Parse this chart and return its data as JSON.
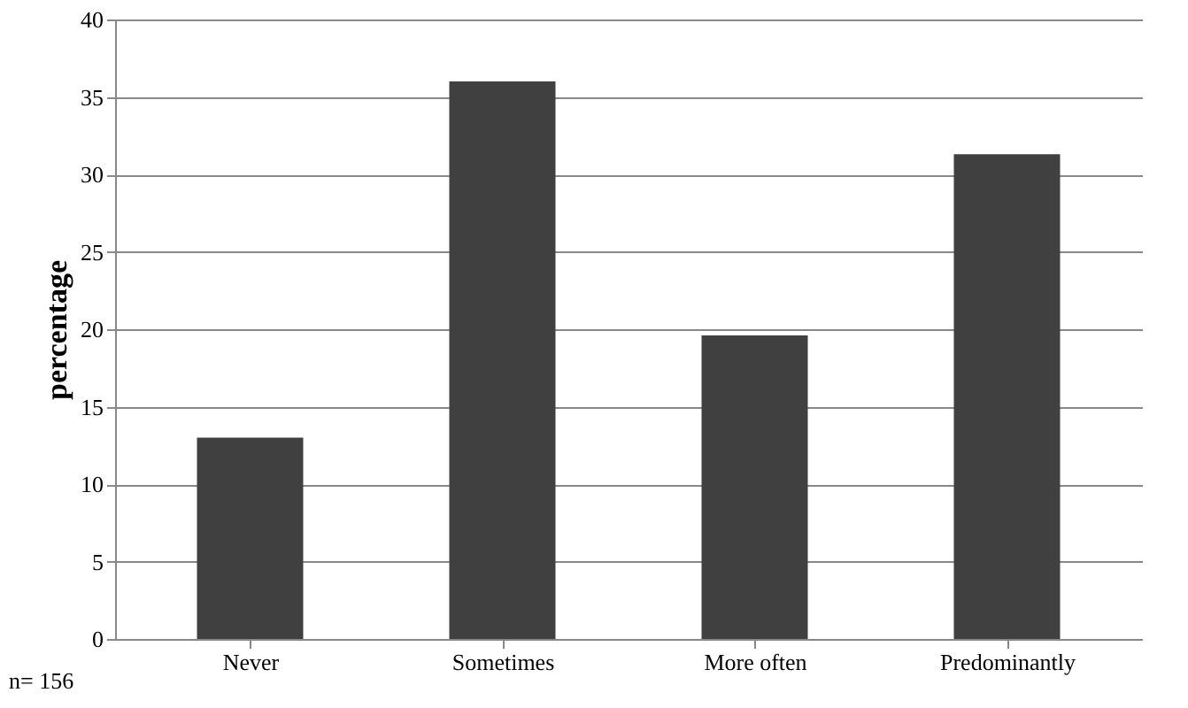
{
  "chart_data": {
    "type": "bar",
    "ylabel": "percentage",
    "categories": [
      "Never",
      "Sometimes",
      "More often",
      "Predominantly"
    ],
    "values": [
      13,
      36,
      19.6,
      31.3
    ],
    "color": "#404040",
    "ylim": [
      0,
      40
    ],
    "yticks": [
      0,
      5,
      10,
      15,
      20,
      25,
      30,
      35,
      40
    ],
    "grid": "y",
    "annotations": [
      "n= 156"
    ]
  }
}
